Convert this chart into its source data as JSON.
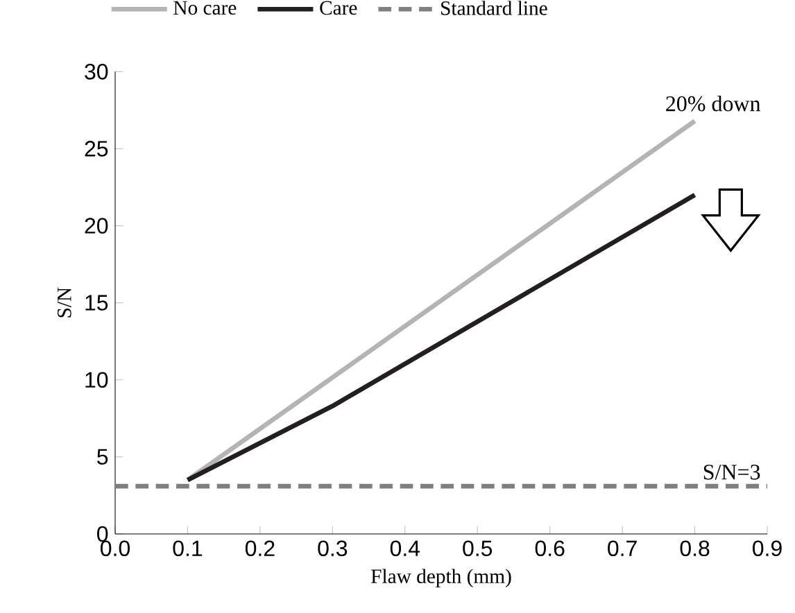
{
  "chart_data": {
    "type": "line",
    "xlabel": "Flaw depth (mm)",
    "ylabel": "S/N",
    "xlim": [
      0,
      0.9
    ],
    "ylim": [
      0,
      30
    ],
    "xticks": [
      {
        "value": 0,
        "label": "0.0"
      },
      {
        "value": 0.1,
        "label": "0.1"
      },
      {
        "value": 0.2,
        "label": "0.2"
      },
      {
        "value": 0.3,
        "label": "0.3"
      },
      {
        "value": 0.4,
        "label": "0.4"
      },
      {
        "value": 0.5,
        "label": "0.5"
      },
      {
        "value": 0.6,
        "label": "0.6"
      },
      {
        "value": 0.7,
        "label": "0.7"
      },
      {
        "value": 0.8,
        "label": "0.8"
      },
      {
        "value": 0.9,
        "label": "0.9"
      }
    ],
    "yticks": [
      0,
      5,
      10,
      15,
      20,
      25,
      30
    ],
    "legend": "top",
    "series": [
      {
        "name": "No care",
        "color": "#b4b4b4",
        "x": [
          0.1,
          0.8
        ],
        "values": [
          3.5,
          26.8
        ],
        "line_style": "solid"
      },
      {
        "name": "Care",
        "color": "#231f20",
        "x": [
          0.1,
          0.3,
          0.8
        ],
        "values": [
          3.5,
          8.3,
          22.0
        ],
        "line_style": "solid"
      },
      {
        "name": "Standard line",
        "color": "#808080",
        "x": [
          0,
          0.9
        ],
        "values": [
          3.1,
          3.1
        ],
        "line_style": "dashed"
      }
    ],
    "annotations": [
      {
        "text": "S/N=3",
        "x": 0.9,
        "y": 3.1
      },
      "20% down"
    ]
  }
}
